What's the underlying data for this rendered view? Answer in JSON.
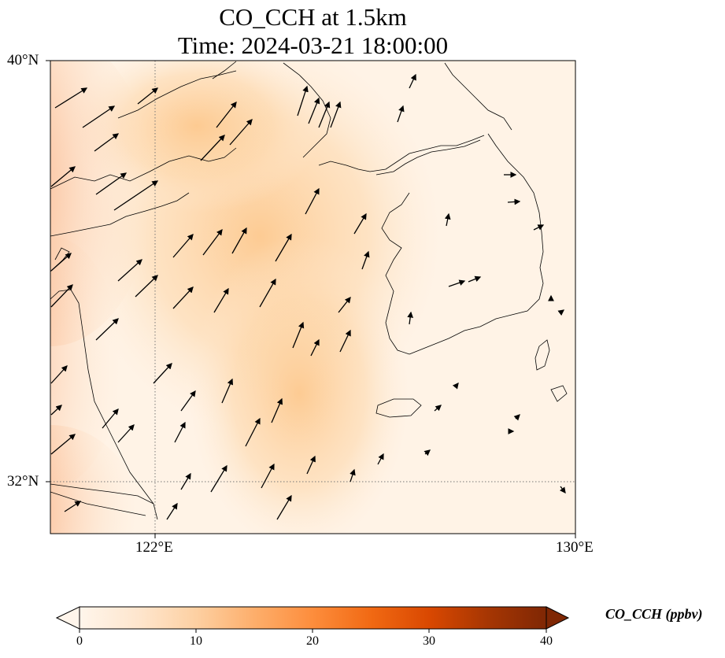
{
  "title": {
    "line1": "CO_CCH at 1.5km",
    "line2": "Time: 2024-03-21 18:00:00"
  },
  "axes": {
    "lat_labels": [
      "40°N",
      "32°N"
    ],
    "lon_labels": [
      "122°E",
      "130°E"
    ],
    "lat_range": [
      31,
      40
    ],
    "lon_range": [
      120,
      130
    ],
    "gridlines": {
      "lat": 32,
      "lon": 122,
      "style": "dotted"
    }
  },
  "colorbar": {
    "label": "CO_CCH (ppbv)",
    "ticks": [
      "0",
      "10",
      "20",
      "30",
      "40"
    ],
    "range": [
      0,
      40
    ],
    "extend": "both",
    "colormap": [
      "#fff5eb",
      "#fee6ce",
      "#fdd0a2",
      "#fdae6b",
      "#fd8d3c",
      "#f16913",
      "#d94801",
      "#a63603",
      "#7f2704"
    ]
  },
  "chart_data": {
    "type": "heatmap",
    "variable": "CO_CCH",
    "unit": "ppbv",
    "level": "1.5km",
    "time": "2024-03-21 18:00:00",
    "field_highlights": [
      {
        "region": "west edge near 120°E",
        "value": 22
      },
      {
        "region": "south-west corner near 31°N 120°E",
        "value": 25
      },
      {
        "region": "central Yellow Sea plume",
        "value": 10
      },
      {
        "region": "Korean Peninsula / east",
        "value": 1
      }
    ],
    "wind_vectors": "quiver field, predominantly south-westerly over the Yellow Sea"
  }
}
